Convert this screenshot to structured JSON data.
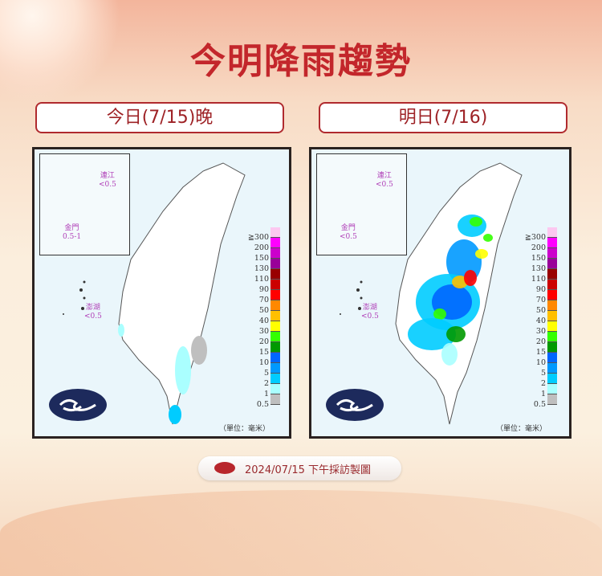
{
  "title": "今明降雨趨勢",
  "panels": [
    {
      "tab": "今日(7/15)晚",
      "matsu": "連江",
      "matsu_val": "<0.5",
      "kinmen": "金門",
      "kinmen_val": "0.5-1",
      "penghu": "澎湖",
      "penghu_val": "<0.5"
    },
    {
      "tab": "明日(7/16)",
      "matsu": "連江",
      "matsu_val": "<0.5",
      "kinmen": "金門",
      "kinmen_val": "<0.5",
      "penghu": "澎湖",
      "penghu_val": "<0.5"
    }
  ],
  "legend": {
    "labels": [
      "≧300",
      "200",
      "150",
      "130",
      "110",
      "90",
      "70",
      "50",
      "40",
      "30",
      "20",
      "15",
      "10",
      "5",
      "2",
      "1",
      "0.5"
    ],
    "colors": [
      "#fcc8f0",
      "#ff00ff",
      "#cc00cc",
      "#990099",
      "#990000",
      "#cc0000",
      "#ff0000",
      "#ff8800",
      "#ffc000",
      "#ffff00",
      "#33ff00",
      "#009900",
      "#0066ff",
      "#0099ff",
      "#00ccff",
      "#aaffff",
      "#bfbfbf"
    ],
    "unit": "（單位：毫米）"
  },
  "footer": "2024/07/15 下午採訪製圖",
  "colors": {
    "title": "#c3262b",
    "tab_border": "#b02a2e",
    "logo": "#1d2a5c"
  }
}
